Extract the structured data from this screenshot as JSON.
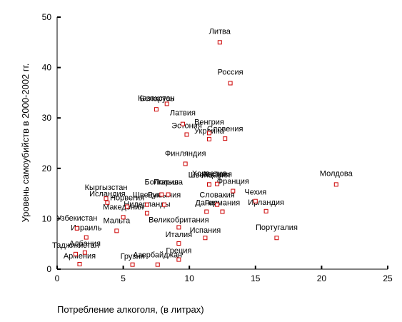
{
  "chart_data": {
    "type": "scatter",
    "title": "",
    "xlabel": "Потребление алкоголя, (в литрах)",
    "ylabel": "Уровень самоубийств в 2000-2002 гг.",
    "xlim": [
      0,
      25
    ],
    "ylim": [
      0,
      50
    ],
    "xticks": [
      0,
      5,
      10,
      15,
      20,
      25
    ],
    "yticks": [
      0,
      10,
      20,
      30,
      40,
      50
    ],
    "grid": false,
    "marker": "hollow-square",
    "marker_color": "#cc0000",
    "points": [
      {
        "label": "Литва",
        "x": 12.3,
        "y": 45.0
      },
      {
        "label": "Россия",
        "x": 13.1,
        "y": 36.9
      },
      {
        "label": "Беларусь",
        "x": 8.3,
        "y": 32.8
      },
      {
        "label": "Казахстан",
        "x": 7.5,
        "y": 31.7
      },
      {
        "label": "Латвия",
        "x": 9.5,
        "y": 28.8
      },
      {
        "label": "Эстония",
        "x": 9.8,
        "y": 26.7
      },
      {
        "label": "Венгрия",
        "x": 11.5,
        "y": 27.0
      },
      {
        "label": "Украина",
        "x": 11.5,
        "y": 25.8
      },
      {
        "label": "Словения",
        "x": 12.7,
        "y": 25.9
      },
      {
        "label": "Финляндия",
        "x": 9.7,
        "y": 20.9
      },
      {
        "label": "Хорватия",
        "x": 11.5,
        "y": 16.8
      },
      {
        "label": "Швейцария",
        "x": 11.5,
        "y": 16.8
      },
      {
        "label": "Австрия",
        "x": 12.1,
        "y": 16.9
      },
      {
        "label": "Франция",
        "x": 13.3,
        "y": 15.5
      },
      {
        "label": "Молдова",
        "x": 21.1,
        "y": 16.8
      },
      {
        "label": "Чехия",
        "x": 15.0,
        "y": 13.5
      },
      {
        "label": "Словакия",
        "x": 12.1,
        "y": 12.8
      },
      {
        "label": "Дания",
        "x": 11.3,
        "y": 11.4
      },
      {
        "label": "Германия",
        "x": 12.5,
        "y": 11.4
      },
      {
        "label": "Ирландия",
        "x": 15.8,
        "y": 11.5
      },
      {
        "label": "Кыргызстан",
        "x": 3.7,
        "y": 14.0
      },
      {
        "label": "Болгария",
        "x": 7.9,
        "y": 14.8
      },
      {
        "label": "Польша",
        "x": 8.4,
        "y": 14.8
      },
      {
        "label": "Исландия",
        "x": 3.8,
        "y": 13.2
      },
      {
        "label": "Румыния",
        "x": 8.1,
        "y": 12.8
      },
      {
        "label": "Швеция",
        "x": 6.8,
        "y": 12.8
      },
      {
        "label": "Норвегия",
        "x": 5.3,
        "y": 12.4
      },
      {
        "label": "Нидерланды",
        "x": 6.8,
        "y": 11.1
      },
      {
        "label": "Узбекистан",
        "x": 1.5,
        "y": 8.1
      },
      {
        "label": "Македония",
        "x": 5.0,
        "y": 10.3
      },
      {
        "label": "Израиль",
        "x": 2.2,
        "y": 6.3
      },
      {
        "label": "Мальта",
        "x": 4.5,
        "y": 7.6
      },
      {
        "label": "Великобритания",
        "x": 9.2,
        "y": 8.3
      },
      {
        "label": "Испания",
        "x": 11.2,
        "y": 6.2
      },
      {
        "label": "Португалия",
        "x": 16.6,
        "y": 6.2
      },
      {
        "label": "Италия",
        "x": 9.2,
        "y": 5.1
      },
      {
        "label": "Таджикистан",
        "x": 1.4,
        "y": 3.0
      },
      {
        "label": "Албания",
        "x": 2.1,
        "y": 3.3
      },
      {
        "label": "Армения",
        "x": 1.7,
        "y": 1.0
      },
      {
        "label": "Греция",
        "x": 9.2,
        "y": 1.9
      },
      {
        "label": "Грузия",
        "x": 5.7,
        "y": 0.9
      },
      {
        "label": "Азербайджан",
        "x": 7.6,
        "y": 0.9
      }
    ]
  }
}
